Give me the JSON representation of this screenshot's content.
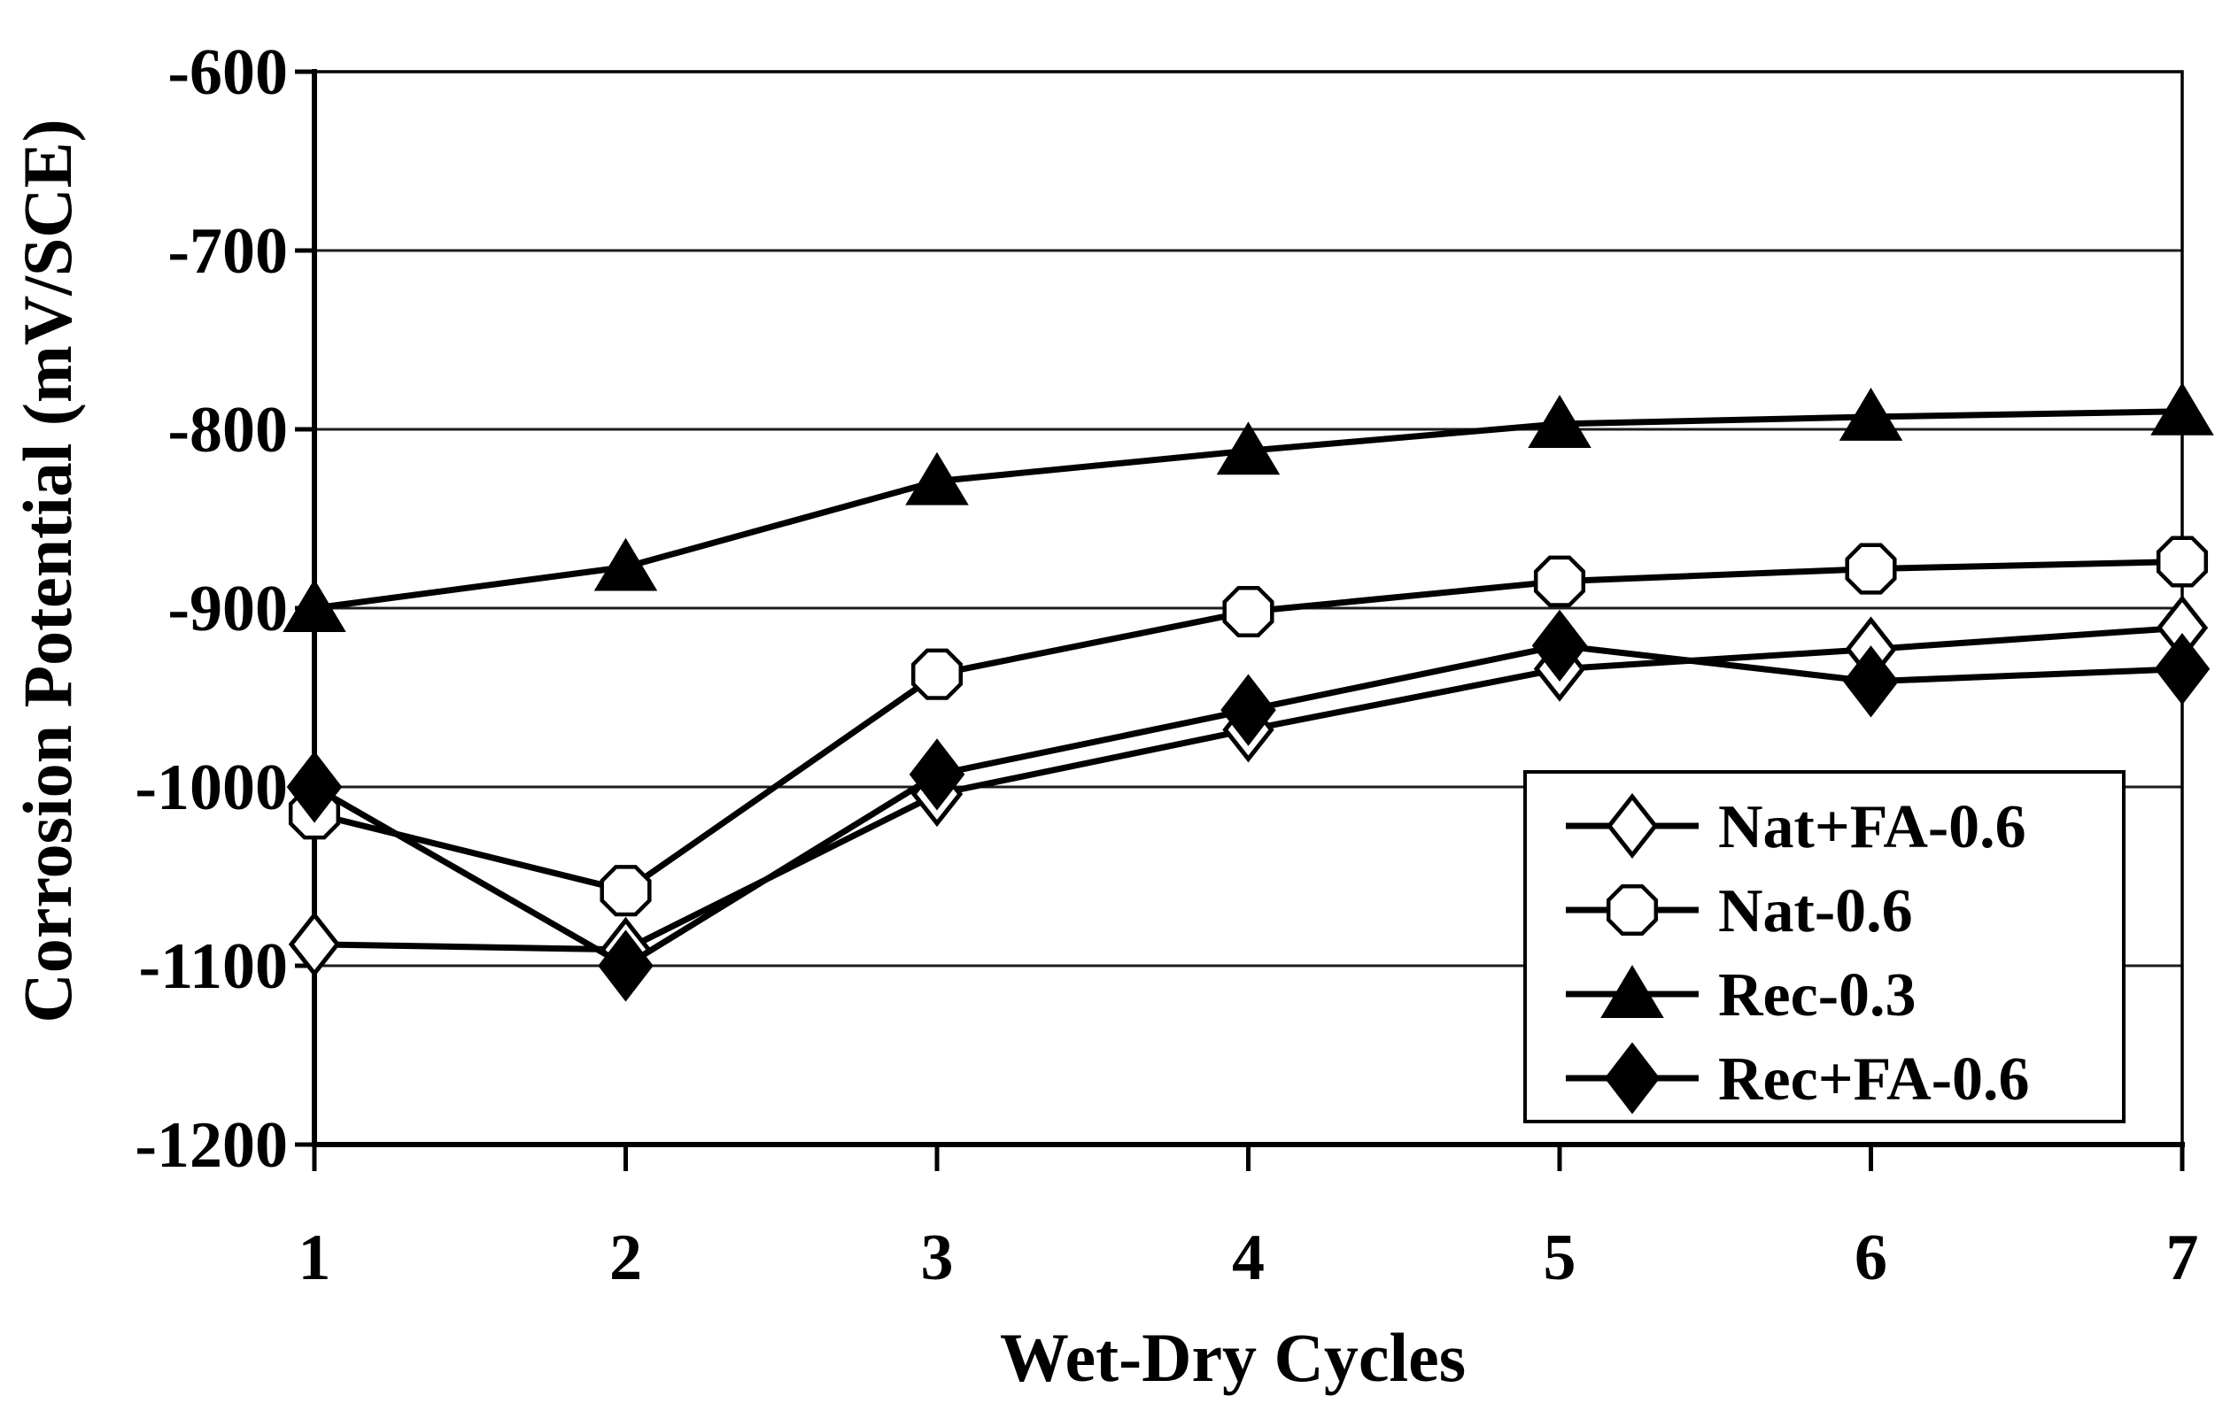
{
  "chart_data": {
    "type": "line",
    "title": "",
    "xlabel": "Wet-Dry Cycles",
    "ylabel": "Corrosion Potential (mV/SCE)",
    "x": [
      1,
      2,
      3,
      4,
      5,
      6,
      7
    ],
    "x_tick_labels": [
      "1",
      "2",
      "3",
      "4",
      "5",
      "6",
      "7"
    ],
    "xlim": [
      1,
      7
    ],
    "ylim": [
      -1200,
      -600
    ],
    "y_ticks": [
      -600,
      -700,
      -800,
      -900,
      -1000,
      -1100,
      -1200
    ],
    "y_tick_labels": [
      "-600",
      "-700",
      "-800",
      "-900",
      "-1000",
      "-1100",
      "-1200"
    ],
    "grid": "horizontal",
    "legend_position": "inside-bottom-right",
    "series": [
      {
        "name": "Nat+FA-0.6",
        "marker": "open-diamond",
        "values": [
          -1088,
          -1091,
          -1004,
          -968,
          -934,
          -923,
          -911
        ]
      },
      {
        "name": "Nat-0.6",
        "marker": "open-circle",
        "values": [
          -1015,
          -1058,
          -937,
          -902,
          -885,
          -878,
          -874
        ]
      },
      {
        "name": "Rec-0.3",
        "marker": "filled-triangle",
        "values": [
          -900,
          -877,
          -829,
          -812,
          -797,
          -793,
          -790
        ]
      },
      {
        "name": "Rec+FA-0.6",
        "marker": "filled-diamond",
        "values": [
          -1000,
          -1100,
          -993,
          -957,
          -921,
          -941,
          -934
        ]
      }
    ],
    "colors": {
      "line": "#000000",
      "grid": "#1c1c1c",
      "background": "#ffffff",
      "legend_border": "#000000"
    }
  }
}
